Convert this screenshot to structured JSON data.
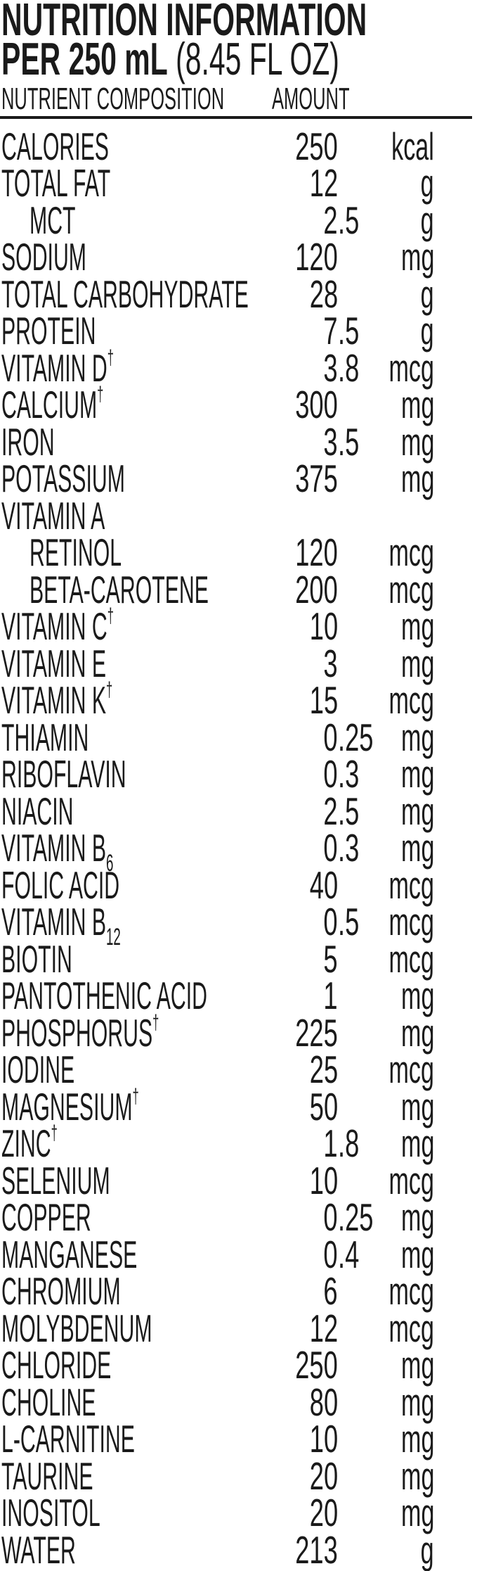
{
  "header": {
    "title": "NUTRITION INFORMATION",
    "serving_bold": "PER 250 mL",
    "serving_regular": "(8.45 FL OZ)",
    "col_nutrient": "NUTRIENT COMPOSITION",
    "col_amount": "AMOUNT"
  },
  "rows": [
    {
      "name": "CALORIES",
      "amount": "250",
      "unit": "kcal"
    },
    {
      "name": "TOTAL FAT",
      "amount": "12",
      "unit": "g"
    },
    {
      "name": "MCT",
      "amount": "2.5",
      "unit": "g",
      "indent": true
    },
    {
      "name": "SODIUM",
      "amount": "120",
      "unit": "mg"
    },
    {
      "name": "TOTAL CARBOHYDRATE",
      "amount": "28",
      "unit": "g"
    },
    {
      "name": "PROTEIN",
      "amount": "7.5",
      "unit": "g"
    },
    {
      "name": "VITAMIN D",
      "mark": "†",
      "amount": "3.8",
      "unit": "mcg"
    },
    {
      "name": "CALCIUM",
      "mark": "†",
      "amount": "300",
      "unit": "mg"
    },
    {
      "name": "IRON",
      "amount": "3.5",
      "unit": "mg"
    },
    {
      "name": "POTASSIUM",
      "amount": "375",
      "unit": "mg"
    },
    {
      "name": "VITAMIN A",
      "amount": "",
      "unit": ""
    },
    {
      "name": "RETINOL",
      "amount": "120",
      "unit": "mcg",
      "indent": true
    },
    {
      "name": "BETA-CAROTENE",
      "amount": "200",
      "unit": "mcg",
      "indent": true
    },
    {
      "name": "VITAMIN C",
      "mark": "†",
      "amount": "10",
      "unit": "mg"
    },
    {
      "name": "VITAMIN E",
      "amount": "3",
      "unit": "mg"
    },
    {
      "name": "VITAMIN K",
      "mark": "†",
      "amount": "15",
      "unit": "mcg"
    },
    {
      "name": "THIAMIN",
      "amount": "0.25",
      "unit": "mg"
    },
    {
      "name": "RIBOFLAVIN",
      "amount": "0.3",
      "unit": "mg"
    },
    {
      "name": "NIACIN",
      "amount": "2.5",
      "unit": "mg"
    },
    {
      "name": "VITAMIN B",
      "sub": "6",
      "amount": "0.3",
      "unit": "mg"
    },
    {
      "name": "FOLIC ACID",
      "amount": "40",
      "unit": "mcg"
    },
    {
      "name": "VITAMIN B",
      "sub": "12",
      "amount": "0.5",
      "unit": "mcg"
    },
    {
      "name": "BIOTIN",
      "amount": "5",
      "unit": "mcg"
    },
    {
      "name": "PANTOTHENIC ACID",
      "amount": "1",
      "unit": "mg"
    },
    {
      "name": "PHOSPHORUS",
      "mark": "†",
      "amount": "225",
      "unit": "mg"
    },
    {
      "name": "IODINE",
      "amount": "25",
      "unit": "mcg"
    },
    {
      "name": "MAGNESIUM",
      "mark": "†",
      "amount": "50",
      "unit": "mg"
    },
    {
      "name": "ZINC",
      "mark": "†",
      "amount": "1.8",
      "unit": "mg"
    },
    {
      "name": "SELENIUM",
      "amount": "10",
      "unit": "mcg"
    },
    {
      "name": "COPPER",
      "amount": "0.25",
      "unit": "mg"
    },
    {
      "name": "MANGANESE",
      "amount": "0.4",
      "unit": "mg"
    },
    {
      "name": "CHROMIUM",
      "amount": "6",
      "unit": "mcg"
    },
    {
      "name": "MOLYBDENUM",
      "amount": "12",
      "unit": "mcg"
    },
    {
      "name": "CHLORIDE",
      "amount": "250",
      "unit": "mg"
    },
    {
      "name": "CHOLINE",
      "amount": "80",
      "unit": "mg"
    },
    {
      "name": "L-CARNITINE",
      "amount": "10",
      "unit": "mg"
    },
    {
      "name": "TAURINE",
      "amount": "20",
      "unit": "mg"
    },
    {
      "name": "INOSITOL",
      "amount": "20",
      "unit": "mg"
    },
    {
      "name": "WATER",
      "amount": "213",
      "unit": "g"
    }
  ]
}
